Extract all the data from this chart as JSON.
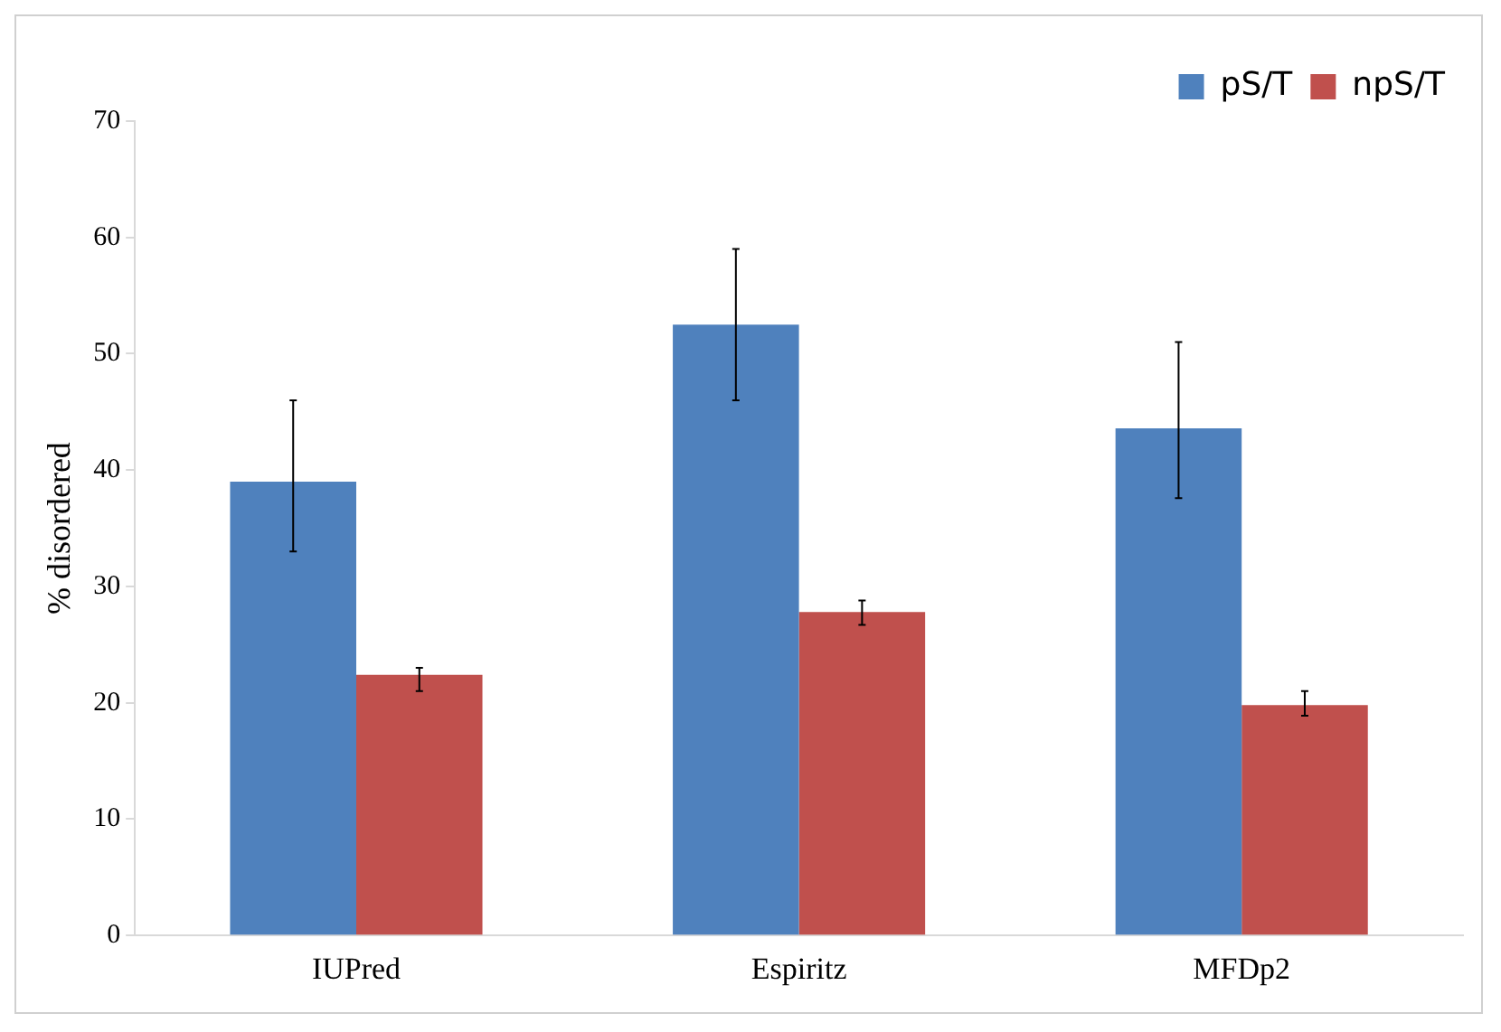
{
  "chart_data": {
    "type": "bar",
    "ylabel": "% disordered",
    "categories": [
      "IUPred",
      "Espiritz",
      "MFDp2"
    ],
    "series": [
      {
        "name": "pS/T",
        "color": "#4f81bd",
        "values": [
          39,
          52.5,
          43.6
        ],
        "errors": [
          [
            33,
            46
          ],
          [
            46,
            59
          ],
          [
            37.6,
            51
          ]
        ]
      },
      {
        "name": "npS/T",
        "color": "#c0504d",
        "values": [
          22.4,
          27.8,
          19.8
        ],
        "errors": [
          [
            21,
            23
          ],
          [
            26.7,
            28.8
          ],
          [
            18.9,
            21
          ]
        ]
      }
    ],
    "ylim": [
      0,
      70
    ],
    "yticks": [
      0,
      10,
      20,
      30,
      40,
      50,
      60,
      70
    ],
    "grid": false,
    "legend": "top right"
  }
}
